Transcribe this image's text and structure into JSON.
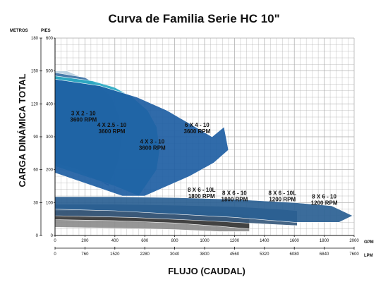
{
  "chart_data": {
    "type": "area",
    "title": "Curva de Familia Serie HC 10\"",
    "xlabel": "FLUJO (CAUDAL)",
    "ylabel": "CARGA DINÁMICA TOTAL",
    "x_unit_primary": "GPM",
    "x_unit_secondary": "LPM",
    "y_unit_left": "METROS",
    "y_unit_right": "PIES",
    "xlim": [
      0,
      2000
    ],
    "ylim_pies": [
      0,
      600
    ],
    "x_ticks_gpm": [
      "0",
      "200",
      "400",
      "600",
      "800",
      "1000",
      "1200",
      "1400",
      "1600",
      "1800",
      "2000"
    ],
    "x_ticks_lpm": [
      "0",
      "760",
      "1520",
      "2280",
      "3040",
      "3800",
      "4560",
      "5320",
      "6080",
      "6840",
      "7600"
    ],
    "y_ticks_metros": [
      "0",
      "30",
      "60",
      "90",
      "120",
      "150",
      "180"
    ],
    "y_ticks_pies": [
      "0",
      "100",
      "200",
      "300",
      "400",
      "500",
      "600"
    ],
    "grid": true,
    "series": [
      {
        "name": "3 X 2 - 10",
        "label_lines": [
          "3 X 2 - 10",
          "3600 RPM"
        ],
        "color": "#b9cfe0",
        "label_at": [
          190,
          365
        ],
        "boundary": [
          [
            0,
            500
          ],
          [
            80,
            500
          ],
          [
            160,
            485
          ],
          [
            200,
            455
          ],
          [
            210,
            380
          ],
          [
            200,
            300
          ],
          [
            190,
            230
          ],
          [
            160,
            190
          ],
          [
            0,
            200
          ]
        ]
      },
      {
        "name": "4 X 2.5 - 10",
        "label_lines": [
          "4 X 2.5 - 10",
          "3600 RPM"
        ],
        "color": "#3f73a5",
        "label_at": [
          380,
          330
        ],
        "boundary": [
          [
            0,
            495
          ],
          [
            200,
            480
          ],
          [
            300,
            455
          ],
          [
            380,
            420
          ],
          [
            430,
            360
          ],
          [
            450,
            300
          ],
          [
            420,
            220
          ],
          [
            360,
            150
          ],
          [
            250,
            175
          ],
          [
            150,
            200
          ],
          [
            0,
            220
          ]
        ]
      },
      {
        "name": "4 X 3 - 10",
        "label_lines": [
          "4 X 3 - 10",
          "3600 RPM"
        ],
        "color": "#2aa9c2",
        "label_at": [
          650,
          280
        ],
        "boundary": [
          [
            0,
            485
          ],
          [
            250,
            470
          ],
          [
            400,
            450
          ],
          [
            520,
            420
          ],
          [
            620,
            380
          ],
          [
            680,
            330
          ],
          [
            700,
            260
          ],
          [
            680,
            200
          ],
          [
            560,
            120
          ],
          [
            400,
            150
          ],
          [
            0,
            210
          ]
        ]
      },
      {
        "name": "6 X 4 - 10",
        "label_lines": [
          "6 X 4 - 10",
          "3600 RPM"
        ],
        "color": "#1e5ea3",
        "label_at": [
          950,
          330
        ],
        "boundary": [
          [
            0,
            475
          ],
          [
            300,
            455
          ],
          [
            550,
            420
          ],
          [
            750,
            380
          ],
          [
            900,
            340
          ],
          [
            1050,
            300
          ],
          [
            1130,
            330
          ],
          [
            1160,
            260
          ],
          [
            1060,
            220
          ],
          [
            900,
            180
          ],
          [
            700,
            140
          ],
          [
            600,
            120
          ],
          [
            450,
            120
          ],
          [
            0,
            190
          ]
        ]
      },
      {
        "name": "8 X 6 - 10L 1800 RPM",
        "label_lines": [
          "8 X 6 - 10L",
          "1800 RPM"
        ],
        "color": "#8d8d8d",
        "label_at": [
          980,
          133
        ],
        "boundary": [
          [
            0,
            52
          ],
          [
            400,
            55
          ],
          [
            800,
            57
          ],
          [
            1100,
            52
          ],
          [
            1300,
            45
          ],
          [
            1300,
            12
          ],
          [
            1100,
            12
          ],
          [
            800,
            18
          ],
          [
            400,
            22
          ],
          [
            0,
            25
          ]
        ]
      },
      {
        "name": "8 X 6 - 10 1800 RPM",
        "label_lines": [
          "8 X 6 - 10",
          "1800 RPM"
        ],
        "color": "#3b3b3b",
        "label_at": [
          1200,
          123
        ],
        "boundary": [
          [
            0,
            75
          ],
          [
            400,
            78
          ],
          [
            800,
            78
          ],
          [
            1100,
            72
          ],
          [
            1300,
            62
          ],
          [
            1300,
            20
          ],
          [
            1100,
            28
          ],
          [
            800,
            38
          ],
          [
            400,
            45
          ],
          [
            0,
            48
          ]
        ]
      },
      {
        "name": "8 X 6 - 10L 1200 RPM",
        "label_lines": [
          "8 X 6 - 10L",
          "1200 RPM"
        ],
        "color": "#385a7d",
        "label_at": [
          1520,
          123
        ],
        "boundary": [
          [
            0,
            95
          ],
          [
            400,
            95
          ],
          [
            800,
            92
          ],
          [
            1200,
            88
          ],
          [
            1500,
            80
          ],
          [
            1620,
            75
          ],
          [
            1620,
            30
          ],
          [
            1400,
            35
          ],
          [
            1000,
            45
          ],
          [
            500,
            55
          ],
          [
            0,
            60
          ]
        ]
      },
      {
        "name": "8 X 6 - 10 1200 RPM",
        "label_lines": [
          "8 X 6 - 10",
          "1200 RPM"
        ],
        "color": "#2a5f93",
        "label_at": [
          1800,
          113
        ],
        "boundary": [
          [
            0,
            118
          ],
          [
            400,
            118
          ],
          [
            800,
            115
          ],
          [
            1200,
            110
          ],
          [
            1600,
            100
          ],
          [
            1850,
            90
          ],
          [
            1990,
            60
          ],
          [
            1900,
            40
          ],
          [
            1600,
            40
          ],
          [
            1200,
            55
          ],
          [
            800,
            65
          ],
          [
            400,
            75
          ],
          [
            0,
            80
          ]
        ]
      }
    ]
  }
}
